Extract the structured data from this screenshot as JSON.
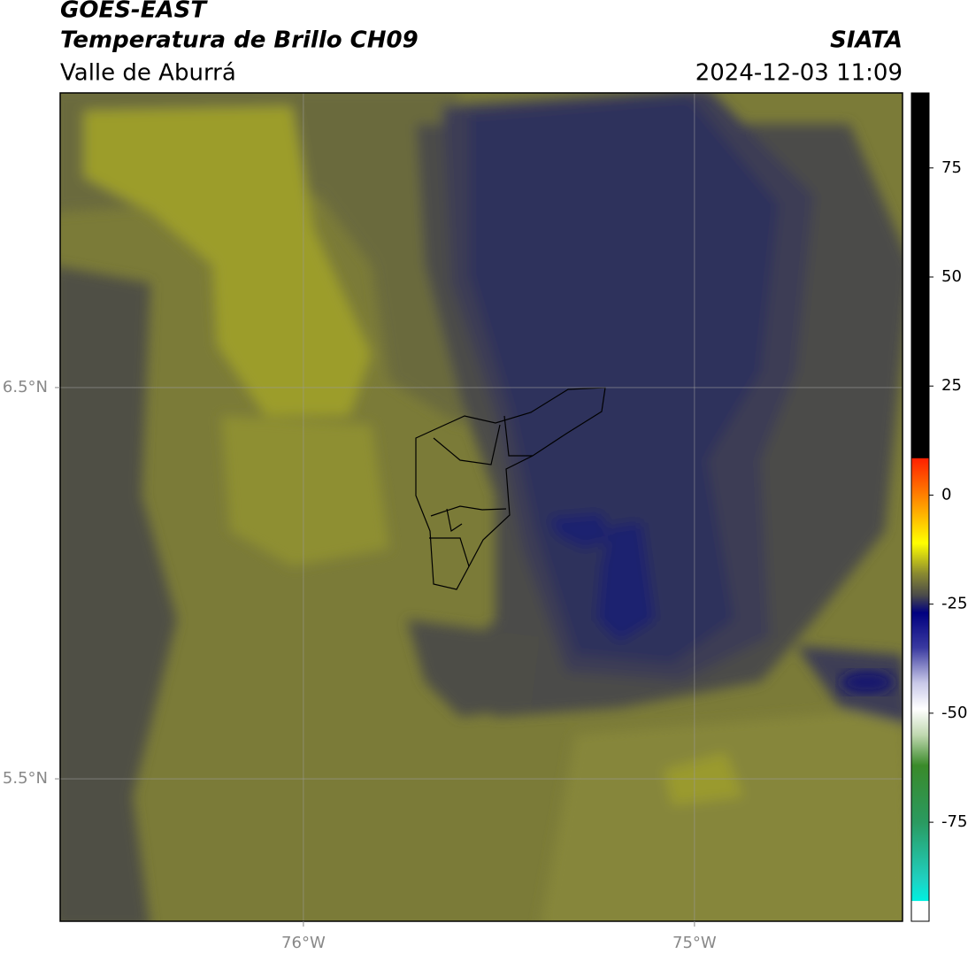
{
  "header": {
    "title": "GOES-EAST",
    "subtitle": "Temperatura de Brillo CH09",
    "region": "Valle de Aburrá",
    "source": "SIATA",
    "datetime": "2024-12-03 11:09"
  },
  "map": {
    "xlim": [
      -76.622,
      -74.468
    ],
    "ylim": [
      5.136,
      7.253
    ],
    "xticks": [
      {
        "value": -76,
        "label": "76°W"
      },
      {
        "value": -75,
        "label": "75°W"
      }
    ],
    "yticks": [
      {
        "value": 6.5,
        "label": "6.5°N"
      },
      {
        "value": 5.5,
        "label": "5.5°N"
      }
    ],
    "grid": true
  },
  "colorbar": {
    "lim": [
      -97.7,
      92.2
    ],
    "ticks": [
      75,
      50,
      25,
      0,
      -25,
      -50,
      -75
    ],
    "stops": [
      {
        "value": 92.2,
        "color": "#000000"
      },
      {
        "value": 8.5,
        "color": "#000000"
      },
      {
        "value": 8.4,
        "color": "#ff2000"
      },
      {
        "value": 0,
        "color": "#ff8000"
      },
      {
        "value": -11,
        "color": "#ffff00"
      },
      {
        "value": -18,
        "color": "#8a8a30"
      },
      {
        "value": -23,
        "color": "#4a4a4a"
      },
      {
        "value": -27,
        "color": "#000080"
      },
      {
        "value": -35,
        "color": "#3a3aa0"
      },
      {
        "value": -43,
        "color": "#c8c8e8"
      },
      {
        "value": -49,
        "color": "#ffffff"
      },
      {
        "value": -55,
        "color": "#c0d8b0"
      },
      {
        "value": -62,
        "color": "#3a8a2a"
      },
      {
        "value": -75,
        "color": "#2a9a60"
      },
      {
        "value": -88,
        "color": "#20d0c0"
      },
      {
        "value": -93,
        "color": "#00f0e0"
      },
      {
        "value": -93.1,
        "color": "#ffffff"
      },
      {
        "value": -97.7,
        "color": "#ffffff"
      }
    ]
  }
}
